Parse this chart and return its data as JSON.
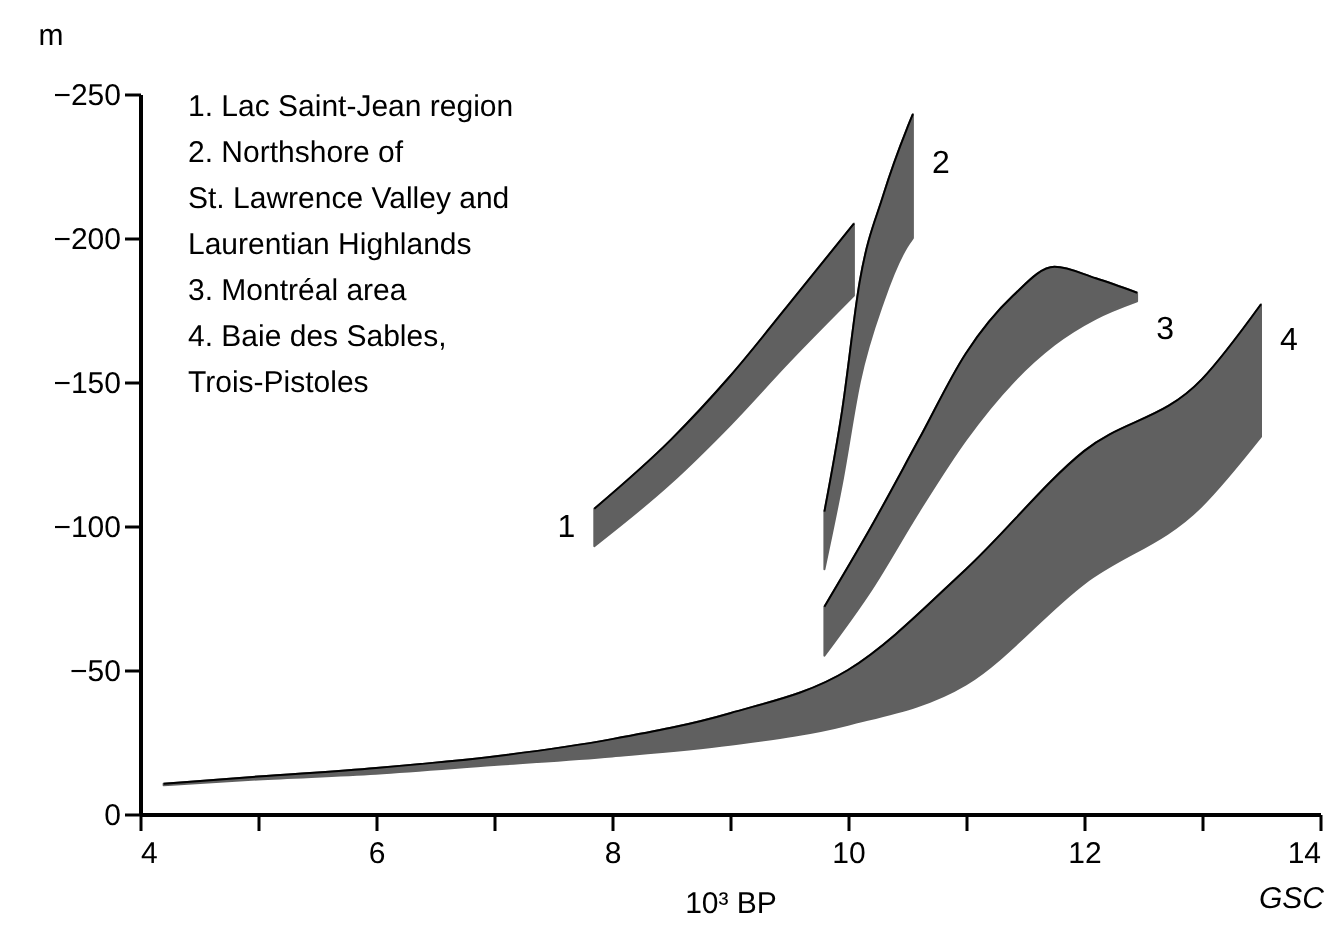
{
  "chart_data": {
    "type": "line",
    "xlabel": "10³ BP",
    "ylabel": "m",
    "xlim": [
      4,
      14
    ],
    "xticks": [
      4,
      {
        "value": 5,
        "label": null
      },
      6,
      {
        "value": 7,
        "label": null
      },
      8,
      {
        "value": 9,
        "label": null
      },
      10,
      {
        "value": 11,
        "label": null
      },
      12,
      {
        "value": 13,
        "label": null
      },
      14
    ],
    "ylim": [
      0,
      -250
    ],
    "yticks": [
      0,
      -50,
      -100,
      -150,
      -200,
      -250
    ],
    "grid": false,
    "legend": false,
    "series": [
      {
        "name": "1",
        "color": "#000000",
        "x": [
          7.85,
          8.5,
          9.0,
          9.5,
          10.05
        ],
        "values": [
          -106,
          -130,
          -152,
          -177,
          -205
        ],
        "upper": [
          -106,
          -130,
          -152,
          -177,
          -205
        ],
        "lower": [
          -93,
          -115,
          -135,
          -157,
          -180
        ]
      },
      {
        "name": "2",
        "color": "#000000",
        "x": [
          9.8,
          9.95,
          10.1,
          10.3,
          10.5,
          10.55
        ],
        "values": [
          -105,
          -140,
          -185,
          -215,
          -238,
          -243
        ],
        "upper": [
          -105,
          -140,
          -185,
          -215,
          -238,
          -243
        ],
        "lower": [
          -85,
          -115,
          -150,
          -178,
          -197,
          -200
        ]
      },
      {
        "name": "3",
        "color": "#000000",
        "x": [
          9.8,
          10.2,
          10.6,
          11.0,
          11.4,
          11.75,
          12.1,
          12.45
        ],
        "values": [
          -72,
          -100,
          -130,
          -160,
          -180,
          -190,
          -186,
          -181
        ],
        "upper": [
          -72,
          -100,
          -130,
          -160,
          -180,
          -190,
          -186,
          -181
        ],
        "lower": [
          -55,
          -78,
          -105,
          -130,
          -150,
          -163,
          -172,
          -178
        ]
      },
      {
        "name": "4",
        "color": "#000000",
        "x": [
          4.2,
          5,
          6,
          7,
          8,
          9,
          10,
          11,
          12,
          13,
          13.5
        ],
        "values": [
          -10.5,
          -13,
          -16,
          -20,
          -26,
          -35,
          -50,
          -85,
          -126,
          -151,
          -177
        ],
        "upper": [
          -10.5,
          -13,
          -16,
          -20,
          -26,
          -35,
          -50,
          -85,
          -126,
          -151,
          -177
        ],
        "lower": [
          -10,
          -12,
          -14,
          -17,
          -20,
          -24,
          -31,
          -45,
          -80,
          -107,
          -131
        ]
      }
    ],
    "annotations": [
      "1.  Lac Saint-Jean region",
      "2.  Northshore of",
      "     St. Lawrence Valley and",
      "     Laurentian Highlands",
      "3.  Montréal area",
      "4.  Baie des Sables,",
      "     Trois-Pistoles",
      "GSC"
    ]
  }
}
